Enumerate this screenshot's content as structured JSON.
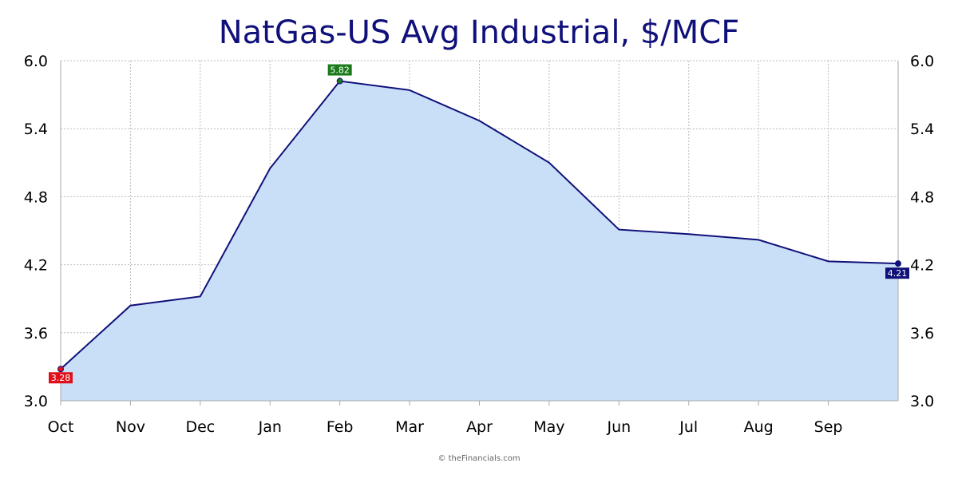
{
  "chart_data": {
    "type": "area",
    "title": "NatGas-US Avg Industrial, $/MCF",
    "xlabel": "",
    "ylabel": "",
    "categories": [
      "Oct",
      "Nov",
      "Dec",
      "Jan",
      "Feb",
      "Mar",
      "Apr",
      "May",
      "Jun",
      "Jul",
      "Aug",
      "Sep",
      ""
    ],
    "x_tick_labels": [
      "Oct",
      "Nov",
      "Dec",
      "Jan",
      "Feb",
      "Mar",
      "Apr",
      "May",
      "Jun",
      "Jul",
      "Aug",
      "Sep"
    ],
    "values": [
      3.28,
      3.84,
      3.92,
      5.05,
      5.82,
      5.74,
      5.47,
      5.1,
      4.51,
      4.47,
      4.42,
      4.23,
      4.21
    ],
    "ylim": [
      3.0,
      6.0
    ],
    "y_ticks": [
      "3.0",
      "3.6",
      "4.2",
      "4.8",
      "5.4",
      "6.0"
    ],
    "grid": true,
    "legend": "none",
    "annotations": {
      "min": {
        "index": 0,
        "label": "3.28",
        "color": "#e0101a"
      },
      "max": {
        "index": 4,
        "label": "5.82",
        "color": "#1a7a1a"
      },
      "last": {
        "index": 12,
        "label": "4.21",
        "color": "#10107a"
      }
    },
    "colors": {
      "line": "#10107a",
      "fill": "#c9dff7",
      "grid": "#bbbbbb"
    }
  },
  "credit": "© theFinancials.com"
}
